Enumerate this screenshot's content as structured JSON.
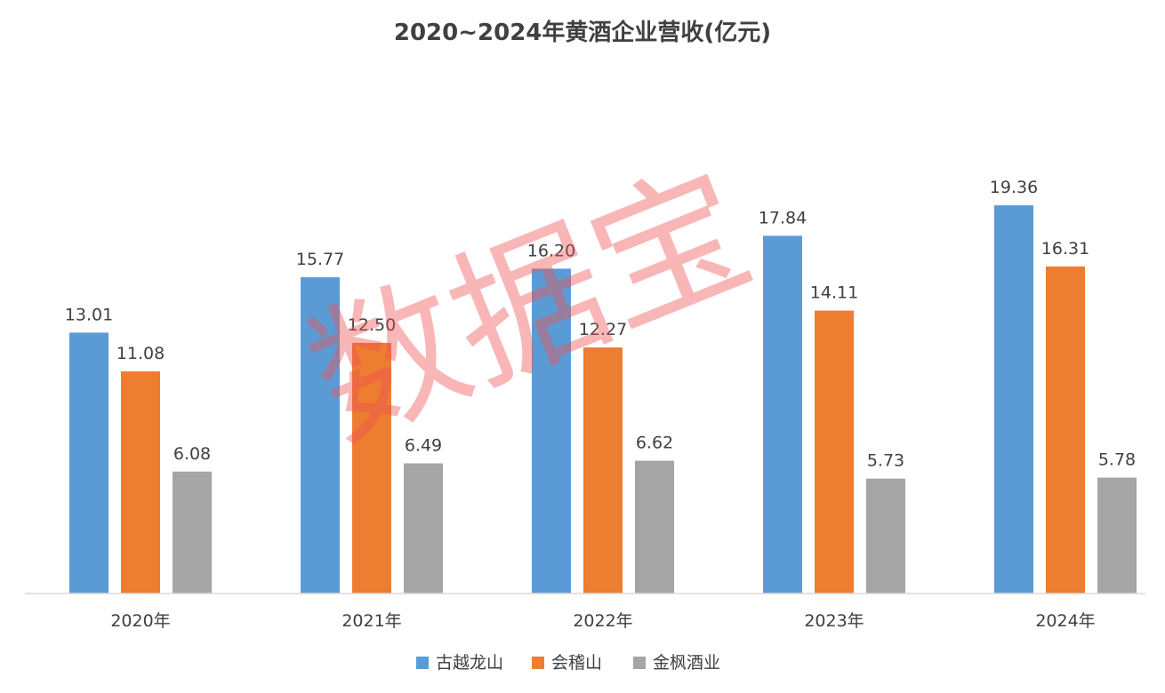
{
  "chart_data": {
    "type": "bar",
    "title": "2020~2024年黄酒企业营收(亿元)",
    "categories": [
      "2020年",
      "2021年",
      "2022年",
      "2023年",
      "2024年"
    ],
    "series": [
      {
        "name": "古越龙山",
        "color": "#5B9BD5",
        "values": [
          13.01,
          15.77,
          16.2,
          17.84,
          19.36
        ]
      },
      {
        "name": "会稽山",
        "color": "#ED7D31",
        "values": [
          11.08,
          12.5,
          12.27,
          14.11,
          16.31
        ]
      },
      {
        "name": "金枫酒业",
        "color": "#A5A5A5",
        "values": [
          6.08,
          6.49,
          6.62,
          5.73,
          5.78
        ]
      }
    ],
    "value_label_format": "2 decimals",
    "ylim": [
      0,
      26.5
    ],
    "gridlines": false,
    "legend_position": "bottom",
    "watermark": "数据宝"
  }
}
